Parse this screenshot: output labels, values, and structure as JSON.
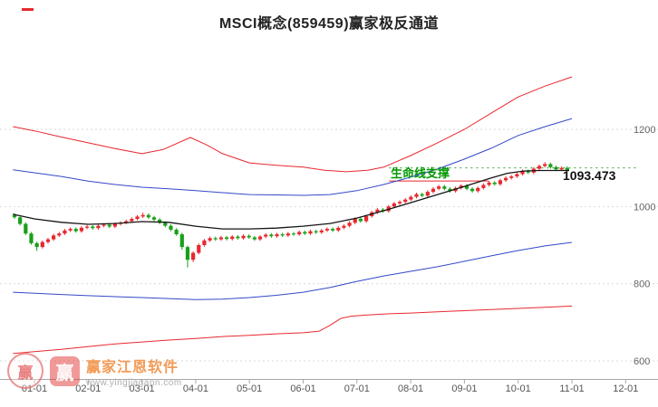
{
  "title": "MSCI概念(859459)赢家极反通道",
  "chart_data": {
    "type": "candlestick",
    "title": "MSCI概念(859459)赢家极反通道",
    "x_ticks": [
      "01-01",
      "02-01",
      "03-01",
      "04-01",
      "05-01",
      "06-01",
      "07-01",
      "08-01",
      "09-01",
      "10-01",
      "11-01",
      "12-01"
    ],
    "y_ticks": [
      "1200",
      "1000",
      "800",
      "600"
    ],
    "y_tick_values": [
      1200,
      1000,
      800,
      600
    ],
    "ylim": [
      560,
      1370
    ],
    "grid": "dotted-horizontal",
    "legend": false,
    "axis_color": "#a8a8a8",
    "tick_label_color": "#555555",
    "grid_color": "#d9d9d9",
    "series": [
      {
        "name": "upper-red-channel",
        "color": "#e8282f",
        "width": 1,
        "points": [
          [
            -0.4,
            1207
          ],
          [
            0,
            1196
          ],
          [
            0.5,
            1180
          ],
          [
            1,
            1165
          ],
          [
            1.5,
            1150
          ],
          [
            2,
            1137
          ],
          [
            2.4,
            1148
          ],
          [
            2.9,
            1179
          ],
          [
            3.2,
            1160
          ],
          [
            3.5,
            1137
          ],
          [
            4,
            1113
          ],
          [
            4.5,
            1107
          ],
          [
            5,
            1102
          ],
          [
            5.4,
            1094
          ],
          [
            5.8,
            1090
          ],
          [
            6.2,
            1094
          ],
          [
            6.5,
            1102
          ],
          [
            7,
            1132
          ],
          [
            7.5,
            1165
          ],
          [
            8,
            1200
          ],
          [
            8.5,
            1242
          ],
          [
            9,
            1284
          ],
          [
            9.5,
            1312
          ],
          [
            10,
            1336
          ]
        ]
      },
      {
        "name": "upper-blue-channel",
        "color": "#3448c8",
        "width": 1,
        "points": [
          [
            -0.4,
            1095
          ],
          [
            0.5,
            1078
          ],
          [
            1,
            1066
          ],
          [
            1.5,
            1057
          ],
          [
            2,
            1050
          ],
          [
            2.5,
            1046
          ],
          [
            3,
            1041
          ],
          [
            3.5,
            1036
          ],
          [
            4,
            1031
          ],
          [
            4.5,
            1030
          ],
          [
            5,
            1029
          ],
          [
            5.5,
            1031
          ],
          [
            6,
            1041
          ],
          [
            6.5,
            1057
          ],
          [
            7,
            1076
          ],
          [
            7.5,
            1097
          ],
          [
            8,
            1123
          ],
          [
            8.5,
            1151
          ],
          [
            9,
            1184
          ],
          [
            9.5,
            1207
          ],
          [
            10,
            1228
          ]
        ]
      },
      {
        "name": "life-line",
        "color": "#151515",
        "width": 1.3,
        "points": [
          [
            -0.4,
            980
          ],
          [
            0,
            968
          ],
          [
            0.5,
            959
          ],
          [
            1,
            954
          ],
          [
            1.5,
            956
          ],
          [
            2,
            961
          ],
          [
            2.5,
            959
          ],
          [
            3,
            949
          ],
          [
            3.5,
            942
          ],
          [
            4,
            942
          ],
          [
            4.5,
            944
          ],
          [
            5,
            949
          ],
          [
            5.5,
            956
          ],
          [
            6,
            970
          ],
          [
            6.5,
            989
          ],
          [
            7,
            1010
          ],
          [
            7.5,
            1031
          ],
          [
            8,
            1052
          ],
          [
            8.5,
            1074
          ],
          [
            8.8,
            1086
          ],
          [
            9.1,
            1092
          ],
          [
            9.4,
            1093.473
          ],
          [
            9.95,
            1093.473
          ]
        ]
      },
      {
        "name": "lower-blue-channel",
        "color": "#3448c8",
        "width": 1,
        "points": [
          [
            -0.4,
            778
          ],
          [
            0.5,
            772
          ],
          [
            1,
            769
          ],
          [
            2,
            764
          ],
          [
            3,
            759
          ],
          [
            3.5,
            760
          ],
          [
            4,
            764
          ],
          [
            4.5,
            770
          ],
          [
            5,
            778
          ],
          [
            5.5,
            790
          ],
          [
            6,
            806
          ],
          [
            6.5,
            820
          ],
          [
            7,
            832
          ],
          [
            7.5,
            844
          ],
          [
            8,
            858
          ],
          [
            8.5,
            872
          ],
          [
            9,
            886
          ],
          [
            9.5,
            898
          ],
          [
            10,
            907
          ]
        ]
      },
      {
        "name": "lower-red-channel",
        "color": "#e8282f",
        "width": 1,
        "points": [
          [
            -0.4,
            619
          ],
          [
            0,
            624
          ],
          [
            0.5,
            630
          ],
          [
            1,
            637
          ],
          [
            1.5,
            644
          ],
          [
            2,
            649
          ],
          [
            2.5,
            654
          ],
          [
            3,
            658
          ],
          [
            3.5,
            663
          ],
          [
            4,
            666
          ],
          [
            4.5,
            670
          ],
          [
            5,
            673
          ],
          [
            5.3,
            677
          ],
          [
            5.5,
            692
          ],
          [
            5.7,
            710
          ],
          [
            5.9,
            716
          ],
          [
            6.2,
            719
          ],
          [
            6.6,
            722
          ],
          [
            7,
            724
          ],
          [
            7.5,
            727
          ],
          [
            8,
            730
          ],
          [
            8.5,
            733
          ],
          [
            9,
            736
          ],
          [
            9.5,
            739
          ],
          [
            10,
            742
          ]
        ]
      }
    ],
    "candles": {
      "up_color": "#e8282f",
      "down_color": "#18a018",
      "ohlc_order": [
        "open",
        "close",
        "low",
        "high"
      ],
      "ohlc": [
        [
          978,
          972,
          968,
          982
        ],
        [
          972,
          955,
          951,
          976
        ],
        [
          955,
          930,
          926,
          959
        ],
        [
          930,
          905,
          901,
          934
        ],
        [
          905,
          895,
          885,
          909
        ],
        [
          895,
          908,
          891,
          912
        ],
        [
          908,
          915,
          904,
          919
        ],
        [
          915,
          925,
          911,
          929
        ],
        [
          925,
          930,
          921,
          934
        ],
        [
          930,
          938,
          926,
          942
        ],
        [
          938,
          942,
          934,
          946
        ],
        [
          942,
          936,
          932,
          946
        ],
        [
          936,
          945,
          932,
          949
        ],
        [
          945,
          948,
          941,
          952
        ],
        [
          948,
          944,
          940,
          952
        ],
        [
          944,
          950,
          940,
          954
        ],
        [
          950,
          953,
          946,
          957
        ],
        [
          953,
          948,
          944,
          957
        ],
        [
          948,
          955,
          944,
          959
        ],
        [
          955,
          958,
          951,
          962
        ],
        [
          958,
          962,
          954,
          966
        ],
        [
          962,
          968,
          958,
          972
        ],
        [
          968,
          974,
          964,
          978
        ],
        [
          974,
          978,
          970,
          984
        ],
        [
          978,
          972,
          968,
          982
        ],
        [
          972,
          966,
          962,
          976
        ],
        [
          966,
          958,
          954,
          970
        ],
        [
          958,
          950,
          946,
          962
        ],
        [
          950,
          940,
          936,
          954
        ],
        [
          940,
          928,
          924,
          944
        ],
        [
          928,
          895,
          888,
          932
        ],
        [
          895,
          862,
          842,
          899
        ],
        [
          862,
          880,
          856,
          884
        ],
        [
          880,
          900,
          876,
          904
        ],
        [
          900,
          912,
          896,
          916
        ],
        [
          912,
          918,
          908,
          922
        ],
        [
          918,
          915,
          911,
          922
        ],
        [
          915,
          920,
          911,
          924
        ],
        [
          920,
          916,
          912,
          924
        ],
        [
          916,
          922,
          912,
          926
        ],
        [
          922,
          918,
          914,
          926
        ],
        [
          918,
          924,
          914,
          928
        ],
        [
          924,
          920,
          916,
          928
        ],
        [
          920,
          915,
          911,
          924
        ],
        [
          915,
          922,
          911,
          926
        ],
        [
          922,
          927,
          918,
          931
        ],
        [
          927,
          923,
          919,
          931
        ],
        [
          923,
          928,
          919,
          932
        ],
        [
          928,
          925,
          921,
          932
        ],
        [
          925,
          930,
          921,
          934
        ],
        [
          930,
          928,
          924,
          934
        ],
        [
          928,
          934,
          924,
          938
        ],
        [
          934,
          930,
          926,
          938
        ],
        [
          930,
          936,
          926,
          940
        ],
        [
          936,
          933,
          929,
          940
        ],
        [
          933,
          938,
          929,
          942
        ],
        [
          938,
          942,
          934,
          946
        ],
        [
          942,
          938,
          934,
          946
        ],
        [
          938,
          945,
          934,
          949
        ],
        [
          945,
          950,
          941,
          954
        ],
        [
          950,
          958,
          946,
          962
        ],
        [
          958,
          968,
          954,
          972
        ],
        [
          968,
          962,
          958,
          972
        ],
        [
          962,
          975,
          958,
          979
        ],
        [
          975,
          985,
          971,
          989
        ],
        [
          985,
          992,
          981,
          996
        ],
        [
          992,
          988,
          984,
          996
        ],
        [
          988,
          1000,
          984,
          1004
        ],
        [
          1000,
          1008,
          996,
          1012
        ],
        [
          1008,
          1012,
          1004,
          1016
        ],
        [
          1012,
          1018,
          1008,
          1022
        ],
        [
          1018,
          1025,
          1014,
          1029
        ],
        [
          1025,
          1032,
          1021,
          1036
        ],
        [
          1032,
          1028,
          1024,
          1036
        ],
        [
          1028,
          1038,
          1024,
          1042
        ],
        [
          1038,
          1046,
          1034,
          1050
        ],
        [
          1046,
          1052,
          1042,
          1056
        ],
        [
          1052,
          1046,
          1042,
          1056
        ],
        [
          1046,
          1040,
          1036,
          1050
        ],
        [
          1040,
          1048,
          1036,
          1052
        ],
        [
          1048,
          1054,
          1044,
          1058
        ],
        [
          1054,
          1046,
          1042,
          1058
        ],
        [
          1046,
          1040,
          1036,
          1050
        ],
        [
          1040,
          1048,
          1036,
          1052
        ],
        [
          1048,
          1056,
          1044,
          1060
        ],
        [
          1056,
          1062,
          1052,
          1066
        ],
        [
          1062,
          1058,
          1054,
          1066
        ],
        [
          1058,
          1068,
          1054,
          1072
        ],
        [
          1068,
          1074,
          1064,
          1078
        ],
        [
          1074,
          1078,
          1070,
          1082
        ],
        [
          1078,
          1084,
          1074,
          1088
        ],
        [
          1084,
          1092,
          1080,
          1096
        ],
        [
          1092,
          1088,
          1084,
          1096
        ],
        [
          1088,
          1098,
          1084,
          1102
        ],
        [
          1098,
          1105,
          1094,
          1109
        ],
        [
          1105,
          1110,
          1101,
          1115
        ],
        [
          1110,
          1102,
          1098,
          1114
        ],
        [
          1102,
          1096,
          1092,
          1106
        ],
        [
          1096,
          1100,
          1092,
          1104
        ],
        [
          1100,
          1093,
          1089,
          1104
        ]
      ]
    },
    "annotations": {
      "support_label": {
        "text": "生命线支撑",
        "color": "#009900"
      },
      "price_label": {
        "text": "1093.473",
        "color": "#111111"
      },
      "dotted_level": {
        "value": 1100,
        "from_month": 6.6,
        "to_month": 11.25,
        "color": "#3aa03a"
      },
      "red_underline": {
        "value": 1066,
        "from_month": 6.6,
        "to_month": 8.45,
        "color": "#e8282f"
      }
    }
  },
  "watermark": {
    "brand": "赢家江恩软件",
    "logo_char": "赢",
    "url": "www.yingjiagann.com"
  }
}
